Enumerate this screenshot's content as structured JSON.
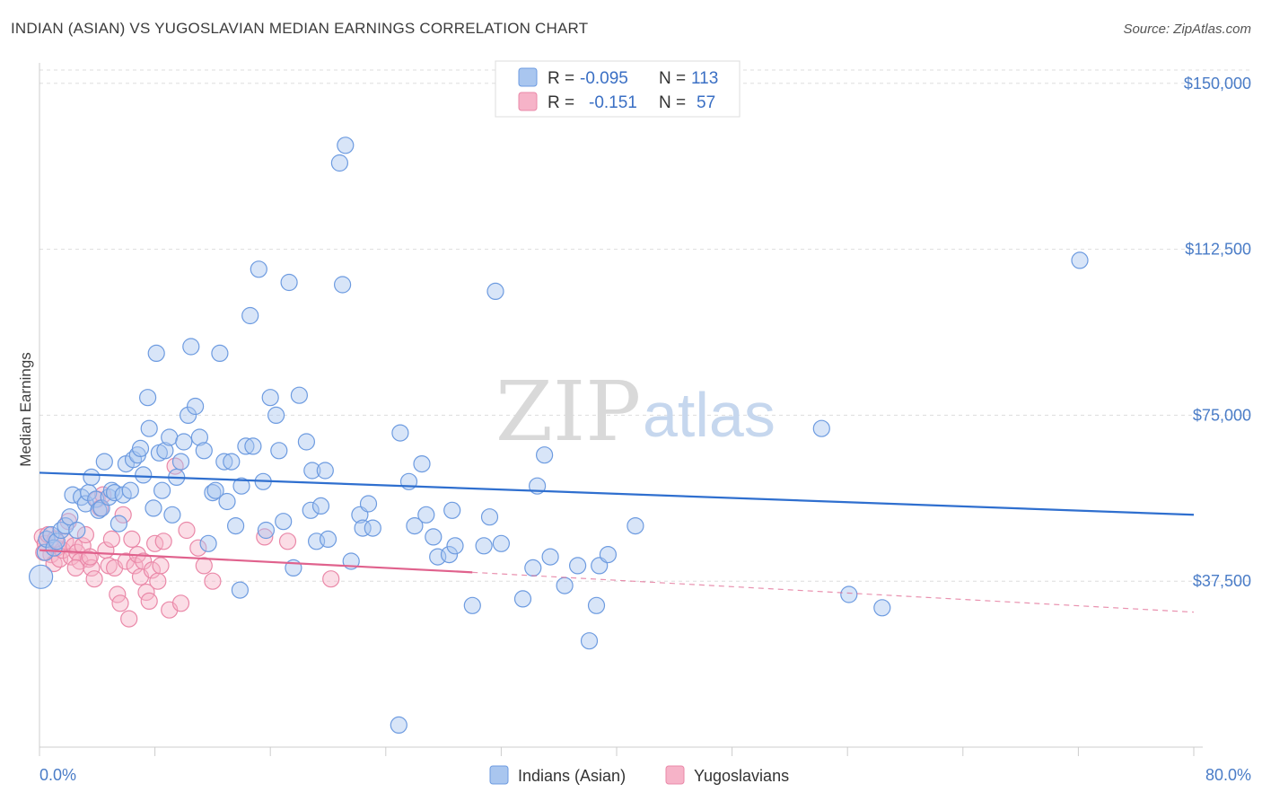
{
  "title": "INDIAN (ASIAN) VS YUGOSLAVIAN MEDIAN EARNINGS CORRELATION CHART",
  "source": "Source: ZipAtlas.com",
  "watermark": {
    "zip": "ZIP",
    "atlas": "atlas"
  },
  "legend": {
    "rows": [
      {
        "r_label": "R =",
        "r_value": "-0.095",
        "n_label": "N =",
        "n_value": "113",
        "color": "#a9c6ef"
      },
      {
        "r_label": "R =",
        "r_value": "-0.151",
        "n_label": "N =",
        "n_value": "57",
        "color": "#f6b3c8"
      }
    ]
  },
  "bottom_legend": [
    {
      "label": "Indians (Asian)",
      "color": "#a9c6ef"
    },
    {
      "label": "Yugoslavians",
      "color": "#f6b3c8"
    }
  ],
  "colors": {
    "blue_fill": "#a9c6ef",
    "blue_stroke": "#6d9be0",
    "blue_line": "#2f6fcf",
    "pink_fill": "#f6b3c8",
    "pink_stroke": "#ea88a8",
    "pink_line": "#e0628d",
    "tick_text": "#4a7cc7",
    "grid": "#dddddd"
  },
  "chart_data": {
    "type": "scatter",
    "title": "INDIAN (ASIAN) VS YUGOSLAVIAN MEDIAN EARNINGS CORRELATION CHART",
    "xlabel": "",
    "ylabel": "Median Earnings",
    "xlim": [
      0,
      80
    ],
    "ylim": [
      0,
      153000
    ],
    "x_tick_labels": [
      "0.0%",
      "80.0%"
    ],
    "y_ticks": [
      37500,
      75000,
      112500,
      150000
    ],
    "y_tick_labels": [
      "$37,500",
      "$75,000",
      "$112,500",
      "$150,000"
    ],
    "grid": "horizontal dashed",
    "series": [
      {
        "name": "Indians (Asian)",
        "r": -0.095,
        "n": 113,
        "trend": {
          "x0": 0,
          "y0": 62000,
          "x1": 80,
          "y1": 52500
        },
        "points": [
          [
            0.1,
            38500
          ],
          [
            0.4,
            44000
          ],
          [
            0.5,
            47000
          ],
          [
            0.8,
            48000
          ],
          [
            1.0,
            45000
          ],
          [
            1.2,
            46500
          ],
          [
            1.5,
            49000
          ],
          [
            1.8,
            50000
          ],
          [
            2.1,
            52000
          ],
          [
            2.3,
            57000
          ],
          [
            2.6,
            49000
          ],
          [
            2.9,
            56500
          ],
          [
            3.2,
            55000
          ],
          [
            3.4,
            57500
          ],
          [
            3.6,
            61000
          ],
          [
            3.9,
            56000
          ],
          [
            4.1,
            53500
          ],
          [
            4.3,
            54000
          ],
          [
            4.5,
            64500
          ],
          [
            4.8,
            56500
          ],
          [
            5.0,
            58000
          ],
          [
            5.2,
            57500
          ],
          [
            5.5,
            50500
          ],
          [
            5.8,
            57000
          ],
          [
            6.0,
            64000
          ],
          [
            6.3,
            58000
          ],
          [
            6.5,
            65000
          ],
          [
            6.8,
            66000
          ],
          [
            7.0,
            67500
          ],
          [
            7.2,
            61500
          ],
          [
            7.5,
            79000
          ],
          [
            7.6,
            72000
          ],
          [
            7.9,
            54000
          ],
          [
            8.1,
            89000
          ],
          [
            8.3,
            66500
          ],
          [
            8.5,
            58000
          ],
          [
            8.7,
            67000
          ],
          [
            9.0,
            70000
          ],
          [
            9.2,
            52500
          ],
          [
            9.5,
            61000
          ],
          [
            9.8,
            64500
          ],
          [
            10.0,
            69000
          ],
          [
            10.3,
            75000
          ],
          [
            10.5,
            90500
          ],
          [
            10.8,
            77000
          ],
          [
            11.1,
            70000
          ],
          [
            11.4,
            67000
          ],
          [
            11.7,
            46000
          ],
          [
            12.0,
            57500
          ],
          [
            12.2,
            58000
          ],
          [
            12.5,
            89000
          ],
          [
            12.8,
            64500
          ],
          [
            13.0,
            55500
          ],
          [
            13.3,
            64500
          ],
          [
            13.6,
            50000
          ],
          [
            13.9,
            35500
          ],
          [
            14.0,
            59000
          ],
          [
            14.3,
            68000
          ],
          [
            14.6,
            97500
          ],
          [
            14.8,
            68000
          ],
          [
            15.2,
            108000
          ],
          [
            15.5,
            60000
          ],
          [
            15.7,
            49000
          ],
          [
            16.0,
            79000
          ],
          [
            16.4,
            75000
          ],
          [
            16.6,
            67000
          ],
          [
            16.9,
            51000
          ],
          [
            17.3,
            105000
          ],
          [
            17.6,
            40500
          ],
          [
            18.0,
            79500
          ],
          [
            18.5,
            69000
          ],
          [
            18.8,
            53500
          ],
          [
            18.9,
            62500
          ],
          [
            19.2,
            46500
          ],
          [
            19.5,
            54500
          ],
          [
            19.8,
            62500
          ],
          [
            20.0,
            47000
          ],
          [
            20.8,
            132000
          ],
          [
            21.0,
            104500
          ],
          [
            21.2,
            136000
          ],
          [
            21.6,
            42000
          ],
          [
            22.2,
            52500
          ],
          [
            22.4,
            49500
          ],
          [
            22.8,
            55000
          ],
          [
            23.1,
            49500
          ],
          [
            25.0,
            71000
          ],
          [
            25.6,
            60000
          ],
          [
            26.0,
            50000
          ],
          [
            26.5,
            64000
          ],
          [
            26.8,
            52500
          ],
          [
            27.3,
            47500
          ],
          [
            27.6,
            43000
          ],
          [
            28.4,
            43500
          ],
          [
            28.6,
            53500
          ],
          [
            28.8,
            45500
          ],
          [
            30.0,
            32000
          ],
          [
            30.8,
            45500
          ],
          [
            31.2,
            52000
          ],
          [
            31.6,
            103000
          ],
          [
            32.0,
            46000
          ],
          [
            33.5,
            33500
          ],
          [
            34.2,
            40500
          ],
          [
            34.5,
            59000
          ],
          [
            35.0,
            66000
          ],
          [
            35.4,
            43000
          ],
          [
            36.4,
            36500
          ],
          [
            37.3,
            41000
          ],
          [
            38.1,
            24000
          ],
          [
            38.6,
            32000
          ],
          [
            38.8,
            41000
          ],
          [
            39.4,
            43500
          ],
          [
            41.3,
            50000
          ],
          [
            54.2,
            72000
          ],
          [
            56.1,
            34500
          ],
          [
            58.4,
            31500
          ],
          [
            72.1,
            110000
          ],
          [
            24.9,
            5000
          ]
        ]
      },
      {
        "name": "Yugoslavians",
        "r": -0.151,
        "n": 57,
        "trend": {
          "x0": 0,
          "y0": 44500,
          "x1": 30,
          "y1": 39500,
          "dashed_to": {
            "x": 80,
            "y": 30500
          }
        },
        "points": [
          [
            0.2,
            47500
          ],
          [
            0.4,
            46000
          ],
          [
            0.6,
            48000
          ],
          [
            0.8,
            43500
          ],
          [
            1.0,
            41500
          ],
          [
            1.2,
            45000
          ],
          [
            1.4,
            42500
          ],
          [
            1.6,
            44500
          ],
          [
            1.8,
            46500
          ],
          [
            2.0,
            51000
          ],
          [
            2.2,
            43000
          ],
          [
            2.4,
            45500
          ],
          [
            2.6,
            44000
          ],
          [
            2.8,
            42000
          ],
          [
            3.0,
            45500
          ],
          [
            3.2,
            48000
          ],
          [
            3.4,
            42500
          ],
          [
            3.6,
            40500
          ],
          [
            3.8,
            38000
          ],
          [
            4.0,
            56000
          ],
          [
            4.2,
            54000
          ],
          [
            4.4,
            57000
          ],
          [
            4.6,
            44500
          ],
          [
            4.8,
            41000
          ],
          [
            5.0,
            47000
          ],
          [
            5.2,
            40500
          ],
          [
            5.4,
            34500
          ],
          [
            5.6,
            32500
          ],
          [
            5.8,
            52500
          ],
          [
            6.0,
            42000
          ],
          [
            6.2,
            29000
          ],
          [
            6.4,
            47000
          ],
          [
            6.6,
            41000
          ],
          [
            6.8,
            43500
          ],
          [
            7.0,
            38500
          ],
          [
            7.2,
            42000
          ],
          [
            7.4,
            35000
          ],
          [
            7.6,
            33000
          ],
          [
            7.8,
            40000
          ],
          [
            8.0,
            46000
          ],
          [
            8.2,
            37500
          ],
          [
            8.4,
            41000
          ],
          [
            8.6,
            46500
          ],
          [
            9.0,
            31000
          ],
          [
            9.4,
            63500
          ],
          [
            9.8,
            32500
          ],
          [
            10.2,
            49000
          ],
          [
            11.0,
            45000
          ],
          [
            11.4,
            41000
          ],
          [
            12.0,
            37500
          ],
          [
            15.6,
            47500
          ],
          [
            17.2,
            46500
          ],
          [
            20.2,
            38000
          ],
          [
            0.3,
            44000
          ],
          [
            1.1,
            47000
          ],
          [
            2.5,
            40500
          ],
          [
            3.5,
            43000
          ]
        ]
      }
    ]
  }
}
